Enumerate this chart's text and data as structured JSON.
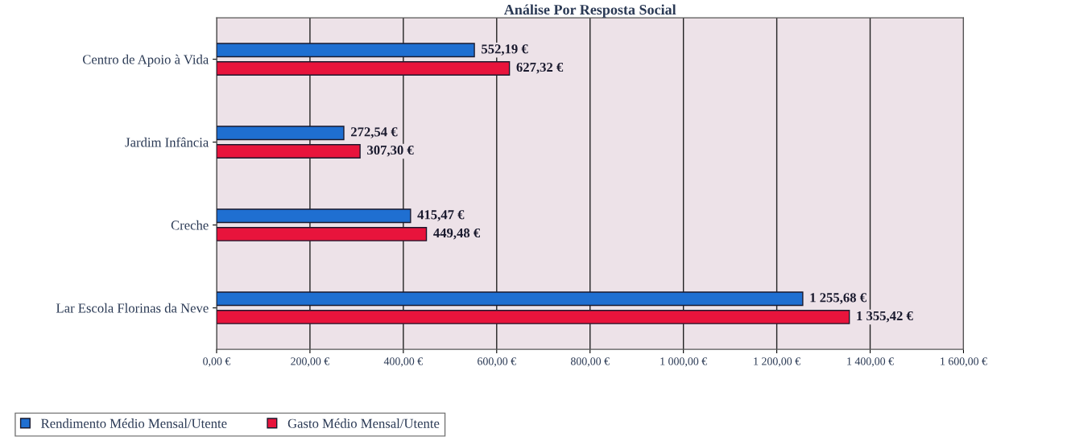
{
  "chart_data": {
    "type": "bar",
    "orientation": "horizontal",
    "title": "Análise Por Resposta Social",
    "categories": [
      "Centro de Apoio à Vida",
      "Jardim Infância",
      "Creche",
      "Lar Escola Florinas da Neve"
    ],
    "series": [
      {
        "name": "Rendimento Médio Mensal/Utente",
        "color": "#1f6fd1",
        "values": [
          552.19,
          272.54,
          415.47,
          1255.68
        ],
        "value_labels": [
          "552,19 €",
          "272,54 €",
          "415,47 €",
          "1 255,68 €"
        ]
      },
      {
        "name": "Gasto Médio Mensal/Utente",
        "color": "#e8143c",
        "values": [
          627.32,
          307.3,
          449.48,
          1355.42
        ],
        "value_labels": [
          "627,32 €",
          "307,30 €",
          "449,48 €",
          "1 355,42 €"
        ]
      }
    ],
    "xlim": [
      0,
      1600
    ],
    "xticks": [
      {
        "value": 0,
        "label": "0,00 €"
      },
      {
        "value": 200,
        "label": "200,00 €"
      },
      {
        "value": 400,
        "label": "400,00 €"
      },
      {
        "value": 600,
        "label": "600,00 €"
      },
      {
        "value": 800,
        "label": "800,00 €"
      },
      {
        "value": 1000,
        "label": "1 000,00 €"
      },
      {
        "value": 1200,
        "label": "1 200,00 €"
      },
      {
        "value": 1400,
        "label": "1 400,00 €"
      },
      {
        "value": 1600,
        "label": "1 600,00 €"
      }
    ],
    "grid": "x",
    "legend": "bottom left"
  }
}
